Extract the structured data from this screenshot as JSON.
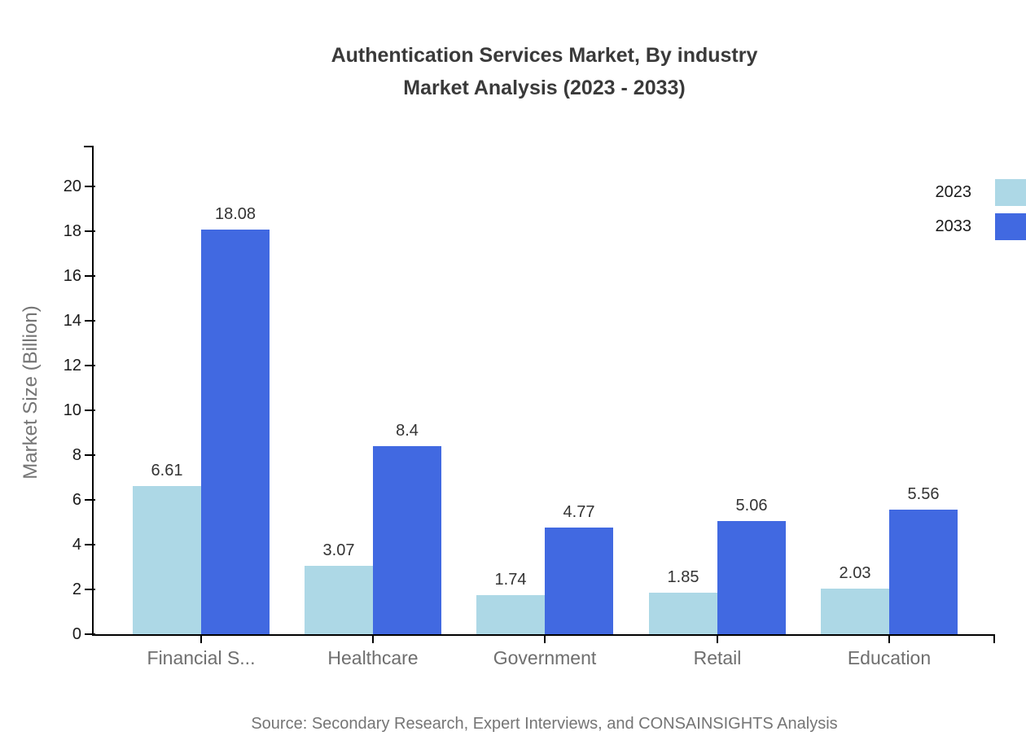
{
  "chart_data": {
    "type": "bar",
    "title": "Authentication Services Market, By industry",
    "subtitle": "Market Analysis (2023 - 2033)",
    "categories": [
      "Financial S...",
      "Healthcare",
      "Government",
      "Retail",
      "Education"
    ],
    "series": [
      {
        "name": "2023",
        "color": "#ADD8E6",
        "values": [
          6.61,
          3.07,
          1.74,
          1.85,
          2.03
        ]
      },
      {
        "name": "2033",
        "color": "#4169E1",
        "values": [
          18.08,
          8.4,
          4.77,
          5.06,
          5.56
        ]
      }
    ],
    "ylabel": "Market Size (Billion)",
    "xlabel": "",
    "yticks": [
      0,
      2,
      4,
      6,
      8,
      10,
      12,
      14,
      16,
      18,
      20
    ],
    "ylim": [
      0,
      21.8
    ],
    "grid": false,
    "legend_position": "top-right",
    "source": "Source: Secondary Research, Expert Interviews, and CONSAINSIGHTS Analysis",
    "colors": {
      "series_2023": "#ADD8E6",
      "series_2033": "#4169E1",
      "axis": "#000000",
      "title_text": "#3a3a3a",
      "tick_text": "#1a1a1a",
      "value_text": "#333333",
      "muted_text": "#757575"
    }
  }
}
